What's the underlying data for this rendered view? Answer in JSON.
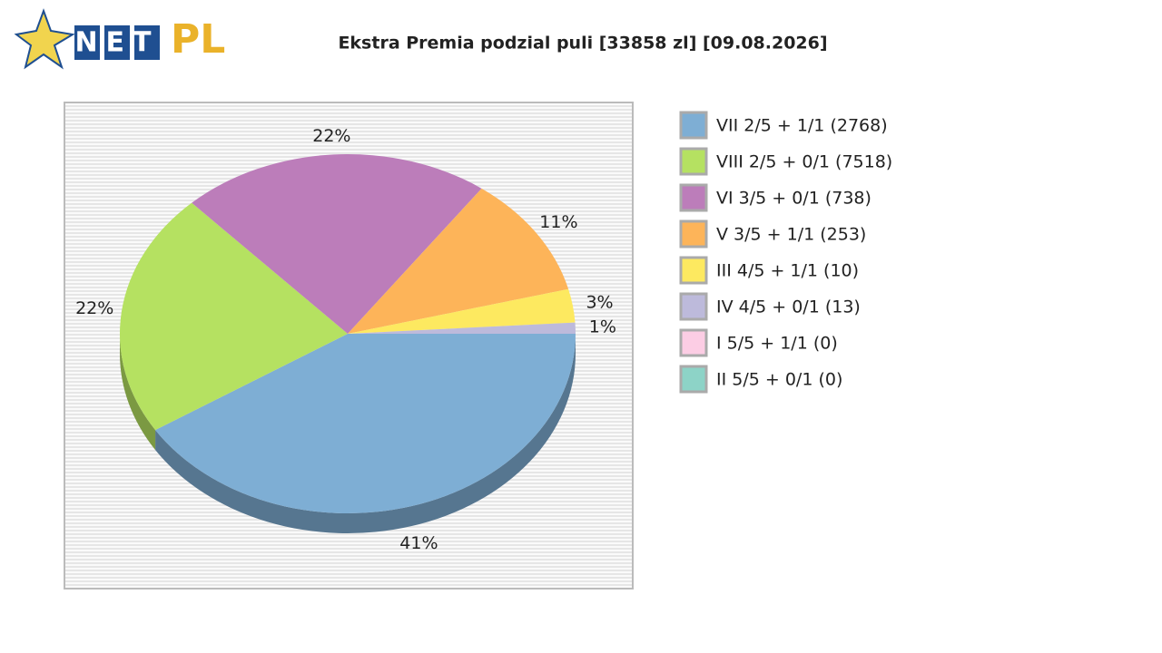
{
  "logo": {
    "left": "NET",
    "right": "PL"
  },
  "chart_data": {
    "type": "pie",
    "title": "Ekstra Premia podzial puli [33858 zl] [09.08.2026]",
    "categories": [
      "VII 2/5 + 1/1 (2768)",
      "VIII 2/5 + 0/1 (7518)",
      "VI 3/5 + 0/1 (738)",
      "V 3/5 + 1/1 (253)",
      "III 4/5 + 1/1 (10)",
      "IV 4/5 + 0/1 (13)",
      "I 5/5 + 1/1 (0)",
      "II 5/5 + 0/1 (0)"
    ],
    "values": [
      41,
      22,
      22,
      11,
      3,
      1,
      0,
      0
    ],
    "value_labels": [
      "41%",
      "22%",
      "22%",
      "11%",
      "3%",
      "1%",
      null,
      null
    ],
    "colors": [
      "#7eaed4",
      "#b5e161",
      "#bc7dba",
      "#fdb459",
      "#fde960",
      "#bdbadb",
      "#fccde4",
      "#8dd3c7"
    ],
    "legend": "right"
  }
}
